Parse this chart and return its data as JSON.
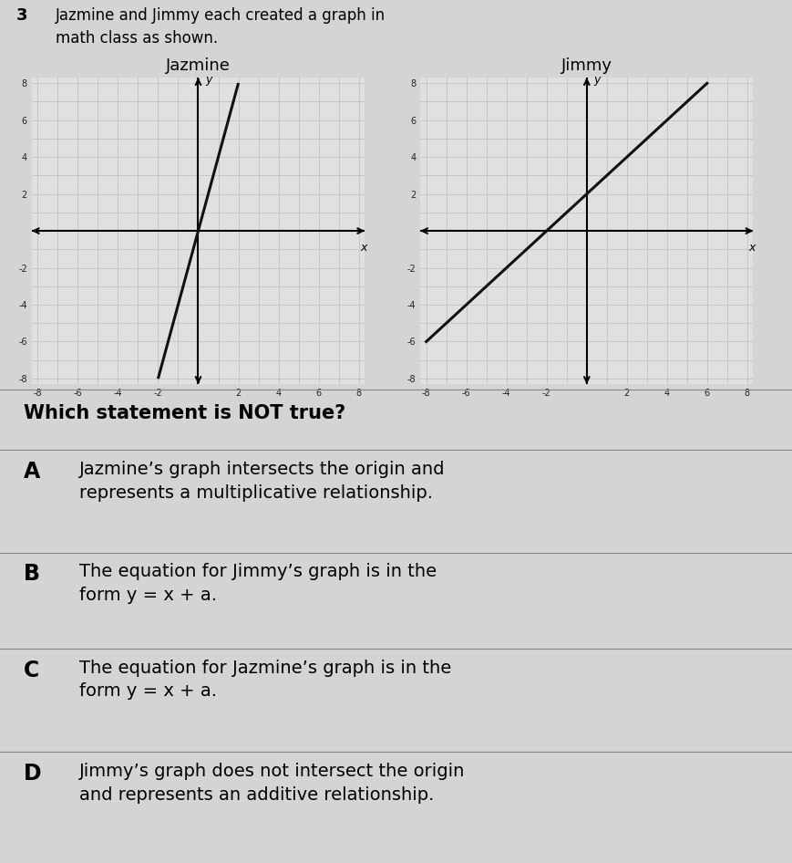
{
  "jazmine_slope": 4,
  "jazmine_intercept": 0,
  "jimmy_slope": 1,
  "jimmy_intercept": 2,
  "xlim": [
    -8,
    8
  ],
  "ylim": [
    -8,
    8
  ],
  "grid_color": "#bbbbbb",
  "line_color": "#111111",
  "background_color": "#d4d4d4",
  "plot_bg": "#e0e0e0",
  "jazmine_title": "Jazmine",
  "jimmy_title": "Jimmy",
  "question_number": "3",
  "question_text": "Jazmine and Jimmy each created a graph in\nmath class as shown.",
  "which_text": "Which statement is NOT true?",
  "option_A": "Jazmine’s graph intersects the origin and\nrepresents a multiplicative relationship.",
  "option_B": "The equation for Jimmy’s graph is in the\nform y = x + a.",
  "option_C": "The equation for Jazmine’s graph is in the\nform y = x + a.",
  "option_D": "Jimmy’s graph does not intersect the origin\nand represents an additive relationship.",
  "label_A": "A",
  "label_B": "B",
  "label_C": "C",
  "label_D": "D",
  "tick_vals": [
    -8,
    -6,
    -4,
    -2,
    2,
    4,
    6,
    8
  ]
}
